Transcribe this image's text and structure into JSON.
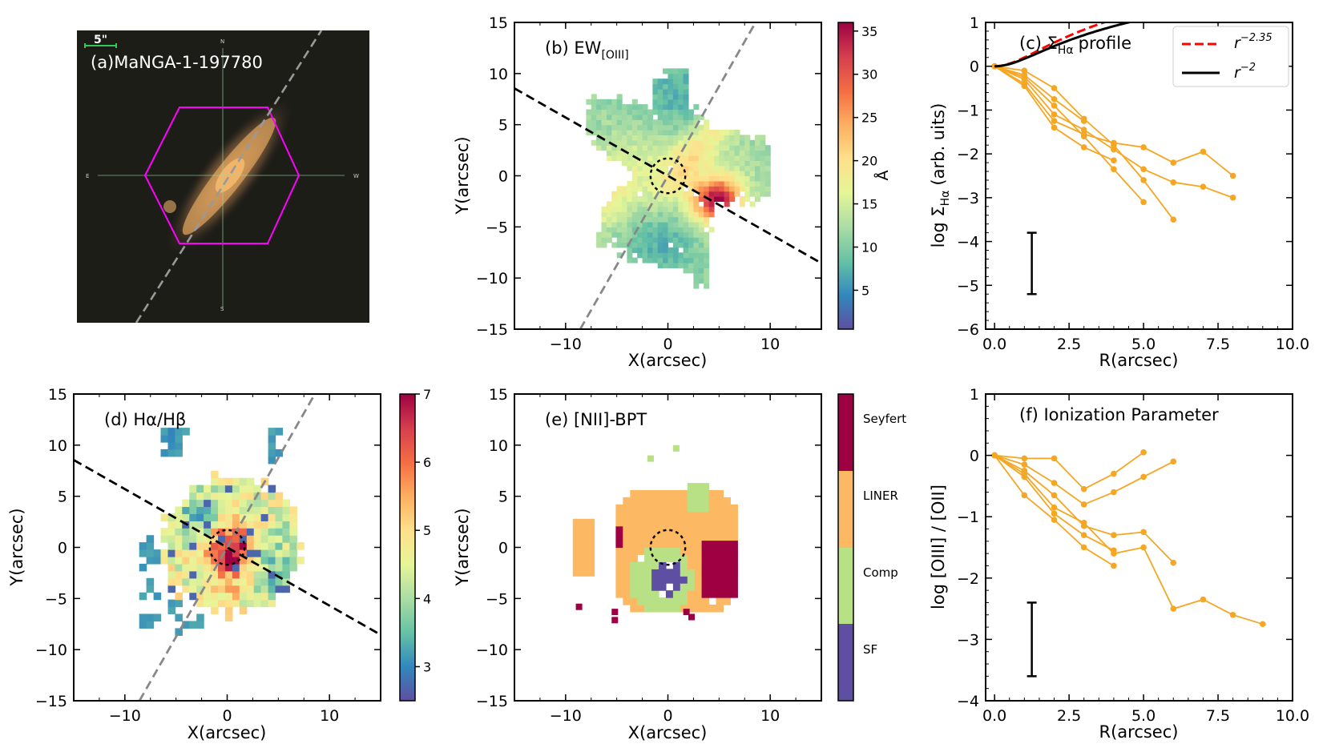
{
  "colors": {
    "ew_cmap": [
      "#5e4fa2",
      "#3288bd",
      "#66c2a5",
      "#abdda4",
      "#e6f598",
      "#fee08b",
      "#fdae61",
      "#f46d43",
      "#d53e4f",
      "#9e0142"
    ],
    "balmer_cmap": [
      "#5e4fa2",
      "#3288bd",
      "#66c2a5",
      "#abdda4",
      "#e6f598",
      "#fee08b",
      "#fdae61",
      "#f46d43",
      "#d53e4f",
      "#9e0142"
    ],
    "bpt_classes": {
      "SF": "#5e4fa2",
      "Comp": "#b8e186",
      "LINER": "#fdb863",
      "Seyfert": "#9e0142"
    },
    "profile": "#f5a623",
    "fit_dashed": "#ff0000",
    "fit_solid": "#000000",
    "major_axis": "#888888",
    "minor_axis": "#000000",
    "hexagon": "#ff00ff",
    "compass": "#9fd6a6",
    "scalebar": "#34c759"
  },
  "chart_data": [
    {
      "id": "a",
      "type": "image",
      "title": "(a)MaNGA-1-197780",
      "scalebar_label": "5\"",
      "compass": {
        "north": "N",
        "south": "S",
        "east": "E",
        "west": "W"
      }
    },
    {
      "id": "b",
      "type": "heatmap",
      "title_main": "(b) EW",
      "title_sub": "[OIII]",
      "xlabel": "X(arcsec)",
      "ylabel": "Y(arcsec)",
      "xlim": [
        -15,
        15
      ],
      "ylim": [
        -15,
        15
      ],
      "xticks": [
        -10,
        0,
        10
      ],
      "yticks": [
        -15,
        -10,
        -5,
        0,
        5,
        10,
        15
      ],
      "colorbar": {
        "label": "Å",
        "range": [
          0.5,
          36
        ],
        "ticks": [
          5,
          10,
          15,
          20,
          25,
          30,
          35
        ]
      },
      "minor_axis_slope": -0.57,
      "major_axis_slope": 1.75,
      "psf_radius": 1.7
    },
    {
      "id": "c",
      "type": "line",
      "title": "(c) Σ",
      "title_sub": "Hα",
      "title_suffix": "profile",
      "xlabel": "R(arcsec)",
      "ylabel_main": "log Σ",
      "ylabel_sub": "Hα",
      "ylabel_suffix": "(arb. uits)",
      "xlim": [
        -0.3,
        10
      ],
      "ylim": [
        -6,
        1
      ],
      "xticks": [
        0.0,
        2.5,
        5.0,
        7.5,
        10.0
      ],
      "xtick_labels": [
        "0.0",
        "2.5",
        "5.0",
        "7.5",
        "10.0"
      ],
      "yticks": [
        -6,
        -5,
        -4,
        -3,
        -2,
        -1,
        0,
        1
      ],
      "legend": [
        {
          "label": "r",
          "exponent": "−2.35",
          "style": "dashed"
        },
        {
          "label": "r",
          "exponent": "−2",
          "style": "solid"
        }
      ],
      "series": [
        {
          "name": "profile 1",
          "x": [
            0,
            1,
            2,
            3,
            4,
            5,
            6
          ],
          "y": [
            0,
            -0.1,
            -0.5,
            -1.2,
            -1.8,
            -2.6,
            -3.5
          ]
        },
        {
          "name": "profile 2",
          "x": [
            0,
            1,
            2,
            3,
            4,
            5
          ],
          "y": [
            0,
            -0.25,
            -0.9,
            -1.6,
            -2.35,
            -3.1
          ]
        },
        {
          "name": "profile 3",
          "x": [
            0,
            1,
            2,
            3,
            4,
            5,
            6,
            7,
            8
          ],
          "y": [
            0,
            -0.4,
            -1.25,
            -1.55,
            -1.75,
            -1.85,
            -2.2,
            -1.95,
            -2.5
          ]
        },
        {
          "name": "profile 4",
          "x": [
            0,
            1,
            2,
            3,
            4,
            5,
            6,
            7,
            8
          ],
          "y": [
            0,
            -0.3,
            -1.1,
            -1.45,
            -1.9,
            -2.35,
            -2.65,
            -2.75,
            -3.0
          ]
        },
        {
          "name": "profile 5",
          "x": [
            0,
            1,
            2,
            3,
            4
          ],
          "y": [
            0,
            -0.45,
            -1.4,
            -1.85,
            -2.15
          ]
        },
        {
          "name": "profile 6",
          "x": [
            0,
            1,
            2,
            3
          ],
          "y": [
            0,
            -0.2,
            -0.75,
            -1.25
          ]
        }
      ],
      "fit_dashed_amp": -0.5,
      "fit_solid_amp": -0.62,
      "errorbar": {
        "x": 1.25,
        "y_low": -5.2,
        "y_high": -3.8
      }
    },
    {
      "id": "d",
      "type": "heatmap",
      "title": "(d) Hα/Hβ",
      "xlabel": "X(arcsec)",
      "ylabel": "Y(arcsec)",
      "xlim": [
        -15,
        15
      ],
      "ylim": [
        -15,
        15
      ],
      "xticks": [
        -10,
        0,
        10
      ],
      "yticks": [
        -15,
        -10,
        -5,
        0,
        5,
        10,
        15
      ],
      "colorbar": {
        "range": [
          2.5,
          7
        ],
        "ticks": [
          3,
          4,
          5,
          6,
          7
        ]
      },
      "minor_axis_slope": -0.57,
      "major_axis_slope": 1.75,
      "psf_radius": 1.7
    },
    {
      "id": "e",
      "type": "heatmap",
      "title": "(e) [NII]-BPT",
      "xlabel": "X(arcsec)",
      "ylabel": "Y(arcsec)",
      "xlim": [
        -15,
        15
      ],
      "ylim": [
        -15,
        15
      ],
      "xticks": [
        -10,
        0,
        10
      ],
      "yticks": [
        -15,
        -10,
        -5,
        0,
        5,
        10,
        15
      ],
      "colorbar": {
        "categories": [
          "SF",
          "Comp",
          "LINER",
          "Seyfert"
        ]
      },
      "psf_radius": 1.7
    },
    {
      "id": "f",
      "type": "line",
      "title": "(f) Ionization Parameter",
      "xlabel": "R(arcsec)",
      "ylabel": "log [OIII] / [OII]",
      "xlim": [
        -0.3,
        10
      ],
      "ylim": [
        -4,
        1
      ],
      "xticks": [
        0.0,
        2.5,
        5.0,
        7.5,
        10.0
      ],
      "xtick_labels": [
        "0.0",
        "2.5",
        "5.0",
        "7.5",
        "10.0"
      ],
      "yticks": [
        -4,
        -3,
        -2,
        -1,
        0,
        1
      ],
      "series": [
        {
          "name": "profile 1",
          "x": [
            0,
            1,
            2,
            3,
            4,
            5
          ],
          "y": [
            0,
            -0.05,
            -0.05,
            -0.55,
            -0.3,
            0.05
          ]
        },
        {
          "name": "profile 2",
          "x": [
            0,
            1,
            2,
            3,
            4,
            5,
            6
          ],
          "y": [
            0,
            -0.15,
            -0.45,
            -0.8,
            -0.6,
            -0.35,
            -0.1
          ]
        },
        {
          "name": "profile 3",
          "x": [
            0,
            1,
            2,
            3,
            4,
            5,
            6,
            7,
            8,
            9
          ],
          "y": [
            0,
            -0.3,
            -0.85,
            -1.1,
            -1.6,
            -1.5,
            -2.5,
            -2.35,
            -2.6,
            -2.75
          ]
        },
        {
          "name": "profile 4",
          "x": [
            0,
            1,
            2,
            3,
            4,
            5,
            6
          ],
          "y": [
            0,
            -0.25,
            -0.65,
            -1.15,
            -1.3,
            -1.25,
            -1.75
          ]
        },
        {
          "name": "profile 5",
          "x": [
            0,
            1,
            2,
            3,
            4
          ],
          "y": [
            0,
            -0.35,
            -0.95,
            -1.3,
            -1.55
          ]
        },
        {
          "name": "profile 6",
          "x": [
            0,
            1,
            2,
            3,
            4
          ],
          "y": [
            0,
            -0.65,
            -1.05,
            -1.5,
            -1.8
          ]
        }
      ],
      "errorbar": {
        "x": 1.25,
        "y_low": -3.6,
        "y_high": -2.4
      }
    }
  ]
}
